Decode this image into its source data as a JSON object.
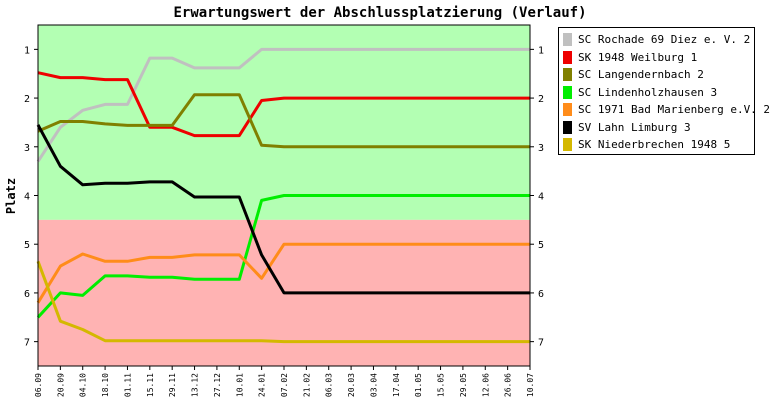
{
  "chart_data": {
    "type": "line",
    "title": "Erwartungswert der Abschlussplatzierung (Verlauf)",
    "ylabel": "Platz",
    "xlabel": "",
    "ylim": [
      7.5,
      0.5
    ],
    "y_ticks": [
      1,
      2,
      3,
      4,
      5,
      6,
      7
    ],
    "zones": [
      {
        "from": 0.5,
        "to": 4.5,
        "color": "#b3ffb3"
      },
      {
        "from": 4.5,
        "to": 7.5,
        "color": "#ffb3b3"
      }
    ],
    "categories": [
      "06.09",
      "20.09",
      "04.10",
      "18.10",
      "01.11",
      "15.11",
      "29.11",
      "13.12",
      "27.12",
      "10.01",
      "24.01",
      "07.02",
      "21.02",
      "06.03",
      "20.03",
      "03.04",
      "17.04",
      "01.05",
      "15.05",
      "29.05",
      "12.06",
      "26.06",
      "10.07"
    ],
    "series": [
      {
        "name": "SC Rochade 69 Diez e. V. 2",
        "color": "#c0c0c0",
        "values": [
          3.3,
          2.6,
          2.25,
          2.13,
          2.13,
          1.18,
          1.18,
          1.38,
          1.38,
          1.38,
          1.0,
          1.0,
          1.0,
          1.0,
          1.0,
          1.0,
          1.0,
          1.0,
          1.0,
          1.0,
          1.0,
          1.0,
          1.0
        ]
      },
      {
        "name": "SK 1948 Weilburg 1",
        "color": "#ee0000",
        "values": [
          1.48,
          1.58,
          1.58,
          1.62,
          1.62,
          2.6,
          2.6,
          2.77,
          2.77,
          2.77,
          2.05,
          2.0,
          2.0,
          2.0,
          2.0,
          2.0,
          2.0,
          2.0,
          2.0,
          2.0,
          2.0,
          2.0,
          2.0
        ]
      },
      {
        "name": "SC Langendernbach 2",
        "color": "#808000",
        "values": [
          2.68,
          2.48,
          2.48,
          2.53,
          2.56,
          2.56,
          2.56,
          1.93,
          1.93,
          1.93,
          2.97,
          3.0,
          3.0,
          3.0,
          3.0,
          3.0,
          3.0,
          3.0,
          3.0,
          3.0,
          3.0,
          3.0,
          3.0
        ]
      },
      {
        "name": "SC Lindenholzhausen 3",
        "color": "#00ee00",
        "values": [
          6.5,
          6.0,
          6.05,
          5.65,
          5.65,
          5.68,
          5.68,
          5.72,
          5.72,
          5.72,
          4.1,
          4.0,
          4.0,
          4.0,
          4.0,
          4.0,
          4.0,
          4.0,
          4.0,
          4.0,
          4.0,
          4.0,
          4.0
        ]
      },
      {
        "name": "SC 1971 Bad Marienberg e.V. 2",
        "color": "#ff8c1a",
        "values": [
          6.2,
          5.45,
          5.2,
          5.35,
          5.35,
          5.27,
          5.27,
          5.22,
          5.22,
          5.22,
          5.7,
          5.0,
          5.0,
          5.0,
          5.0,
          5.0,
          5.0,
          5.0,
          5.0,
          5.0,
          5.0,
          5.0,
          5.0
        ]
      },
      {
        "name": "SV Lahn Limburg 3",
        "color": "#000000",
        "values": [
          2.55,
          3.4,
          3.78,
          3.75,
          3.75,
          3.72,
          3.72,
          4.03,
          4.03,
          4.03,
          5.22,
          6.0,
          6.0,
          6.0,
          6.0,
          6.0,
          6.0,
          6.0,
          6.0,
          6.0,
          6.0,
          6.0,
          6.0
        ]
      },
      {
        "name": "SK Niederbrechen 1948 5",
        "color": "#d4b800",
        "values": [
          5.35,
          6.58,
          6.75,
          6.98,
          6.98,
          6.98,
          6.98,
          6.98,
          6.98,
          6.98,
          6.98,
          7.0,
          7.0,
          7.0,
          7.0,
          7.0,
          7.0,
          7.0,
          7.0,
          7.0,
          7.0,
          7.0,
          7.0
        ]
      }
    ]
  }
}
